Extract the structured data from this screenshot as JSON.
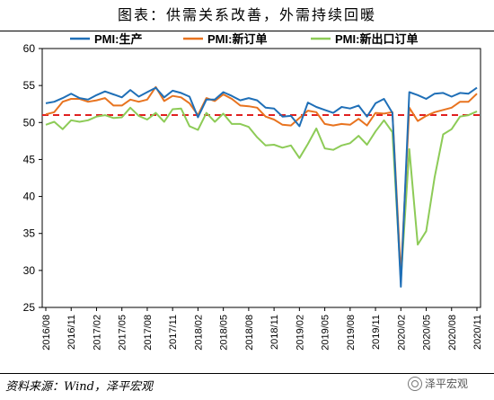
{
  "title": "图表：供需关系改善，外需持续回暖",
  "source": "资料来源：Wind，泽平宏观",
  "watermark": "泽平宏观",
  "chart_data": {
    "type": "line",
    "ylim": [
      25,
      60
    ],
    "yticks": [
      25,
      30,
      35,
      40,
      45,
      50,
      55,
      60
    ],
    "x_tick_labels": [
      "2016/08",
      "2016/11",
      "2017/02",
      "2017/05",
      "2017/08",
      "2017/11",
      "2018/02",
      "2018/05",
      "2018/08",
      "2018/11",
      "2019/02",
      "2019/05",
      "2019/08",
      "2019/11",
      "2020/02",
      "2020/05",
      "2020/08",
      "2020/11"
    ],
    "x": [
      "2016/08",
      "2016/09",
      "2016/10",
      "2016/11",
      "2016/12",
      "2017/01",
      "2017/02",
      "2017/03",
      "2017/04",
      "2017/05",
      "2017/06",
      "2017/07",
      "2017/08",
      "2017/09",
      "2017/10",
      "2017/11",
      "2017/12",
      "2018/01",
      "2018/02",
      "2018/03",
      "2018/04",
      "2018/05",
      "2018/06",
      "2018/07",
      "2018/08",
      "2018/09",
      "2018/10",
      "2018/11",
      "2018/12",
      "2019/01",
      "2019/02",
      "2019/03",
      "2019/04",
      "2019/05",
      "2019/06",
      "2019/07",
      "2019/08",
      "2019/09",
      "2019/10",
      "2019/11",
      "2019/12",
      "2020/01",
      "2020/02",
      "2020/03",
      "2020/04",
      "2020/05",
      "2020/06",
      "2020/07",
      "2020/08",
      "2020/09",
      "2020/10",
      "2020/11"
    ],
    "reference_line": 51,
    "legend_position": "top",
    "series": [
      {
        "name": "PMI:生产",
        "color": "#1F6FB7",
        "values": [
          52.6,
          52.8,
          53.3,
          53.9,
          53.3,
          53.1,
          53.7,
          54.2,
          53.8,
          53.4,
          54.4,
          53.5,
          54.1,
          54.7,
          53.4,
          54.3,
          54.0,
          53.5,
          50.7,
          53.1,
          53.1,
          54.1,
          53.6,
          53.0,
          53.3,
          53.0,
          52.0,
          51.9,
          50.8,
          50.9,
          49.5,
          52.7,
          52.1,
          51.7,
          51.3,
          52.1,
          51.9,
          52.3,
          50.8,
          52.6,
          53.2,
          51.3,
          27.8,
          54.1,
          53.7,
          53.2,
          53.9,
          54.0,
          53.5,
          54.0,
          53.9,
          54.7
        ]
      },
      {
        "name": "PMI:新订单",
        "color": "#E8731F",
        "values": [
          51.1,
          51.4,
          52.8,
          53.2,
          53.2,
          52.8,
          53.0,
          53.3,
          52.3,
          52.3,
          53.1,
          52.8,
          53.1,
          54.8,
          52.9,
          53.6,
          53.4,
          52.6,
          51.0,
          53.3,
          52.9,
          53.8,
          53.2,
          52.3,
          52.2,
          52.0,
          50.8,
          50.4,
          49.7,
          49.6,
          50.6,
          51.6,
          51.4,
          49.8,
          49.6,
          49.8,
          49.7,
          50.5,
          49.6,
          51.3,
          51.2,
          51.4,
          29.3,
          52.0,
          50.2,
          50.9,
          51.4,
          51.7,
          52.0,
          52.8,
          52.8,
          53.9
        ]
      },
      {
        "name": "PMI:新出口订单",
        "color": "#8DCB57",
        "values": [
          49.7,
          50.1,
          49.1,
          50.3,
          50.1,
          50.3,
          50.8,
          51.0,
          50.6,
          50.7,
          52.0,
          50.9,
          50.4,
          51.3,
          50.1,
          51.8,
          51.9,
          49.5,
          49.0,
          51.3,
          50.1,
          51.2,
          49.8,
          49.8,
          49.4,
          48.0,
          46.9,
          47.0,
          46.6,
          46.9,
          45.2,
          47.1,
          49.2,
          46.5,
          46.3,
          46.9,
          47.2,
          48.2,
          47.0,
          48.8,
          50.3,
          48.7,
          28.7,
          46.4,
          33.5,
          35.3,
          42.6,
          48.4,
          49.1,
          50.8,
          51.0,
          51.5
        ]
      }
    ]
  }
}
